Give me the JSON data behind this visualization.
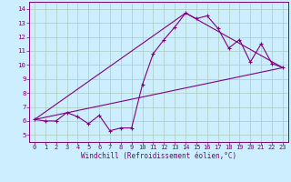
{
  "xlabel": "Windchill (Refroidissement éolien,°C)",
  "bg_color": "#cceeff",
  "line_color": "#800080",
  "grid_color": "#aaccbb",
  "xlim": [
    -0.5,
    23.5
  ],
  "ylim": [
    4.5,
    14.5
  ],
  "yticks": [
    5,
    6,
    7,
    8,
    9,
    10,
    11,
    12,
    13,
    14
  ],
  "xticks": [
    0,
    1,
    2,
    3,
    4,
    5,
    6,
    7,
    8,
    9,
    10,
    11,
    12,
    13,
    14,
    15,
    16,
    17,
    18,
    19,
    20,
    21,
    22,
    23
  ],
  "series1_x": [
    0,
    1,
    2,
    3,
    4,
    5,
    6,
    7,
    8,
    9,
    10,
    11,
    12,
    13,
    14,
    15,
    16,
    17,
    18,
    19,
    20,
    21,
    22,
    23
  ],
  "series1_y": [
    6.1,
    6.0,
    6.0,
    6.6,
    6.3,
    5.8,
    6.4,
    5.3,
    5.5,
    5.5,
    8.6,
    10.8,
    11.8,
    12.7,
    13.7,
    13.3,
    13.5,
    12.6,
    11.2,
    11.8,
    10.2,
    11.5,
    10.1,
    9.8
  ],
  "series2_x": [
    0,
    23
  ],
  "series2_y": [
    6.1,
    9.8
  ],
  "series3_x": [
    0,
    14,
    23
  ],
  "series3_y": [
    6.1,
    13.7,
    9.8
  ],
  "tick_fontsize": 5.0,
  "xlabel_fontsize": 5.5
}
